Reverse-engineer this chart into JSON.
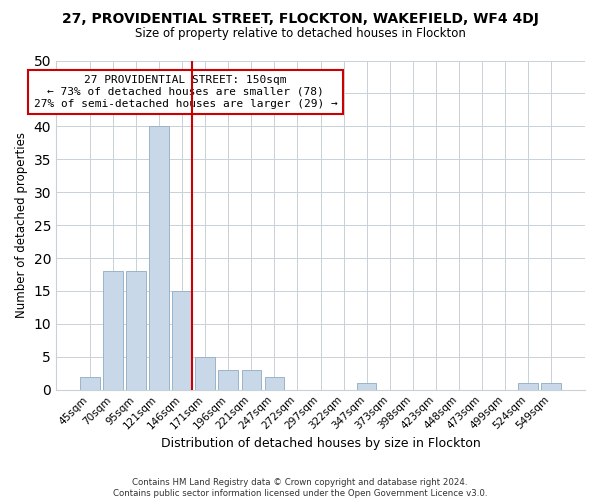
{
  "title": "27, PROVIDENTIAL STREET, FLOCKTON, WAKEFIELD, WF4 4DJ",
  "subtitle": "Size of property relative to detached houses in Flockton",
  "xlabel": "Distribution of detached houses by size in Flockton",
  "ylabel": "Number of detached properties",
  "bar_labels": [
    "45sqm",
    "70sqm",
    "95sqm",
    "121sqm",
    "146sqm",
    "171sqm",
    "196sqm",
    "221sqm",
    "247sqm",
    "272sqm",
    "297sqm",
    "322sqm",
    "347sqm",
    "373sqm",
    "398sqm",
    "423sqm",
    "448sqm",
    "473sqm",
    "499sqm",
    "524sqm",
    "549sqm"
  ],
  "bar_values": [
    2,
    18,
    18,
    40,
    15,
    5,
    3,
    3,
    2,
    0,
    0,
    0,
    1,
    0,
    0,
    0,
    0,
    0,
    0,
    1,
    1
  ],
  "bar_color": "#c8d8e8",
  "bar_edge_color": "#9ab4c8",
  "ylim": [
    0,
    50
  ],
  "yticks": [
    0,
    5,
    10,
    15,
    20,
    25,
    30,
    35,
    40,
    45,
    50
  ],
  "property_label": "27 PROVIDENTIAL STREET: 150sqm",
  "annotation_line1": "← 73% of detached houses are smaller (78)",
  "annotation_line2": "27% of semi-detached houses are larger (29) →",
  "vline_color": "#cc0000",
  "footnote1": "Contains HM Land Registry data © Crown copyright and database right 2024.",
  "footnote2": "Contains public sector information licensed under the Open Government Licence v3.0.",
  "background_color": "#ffffff",
  "grid_color": "#c8d0d8"
}
